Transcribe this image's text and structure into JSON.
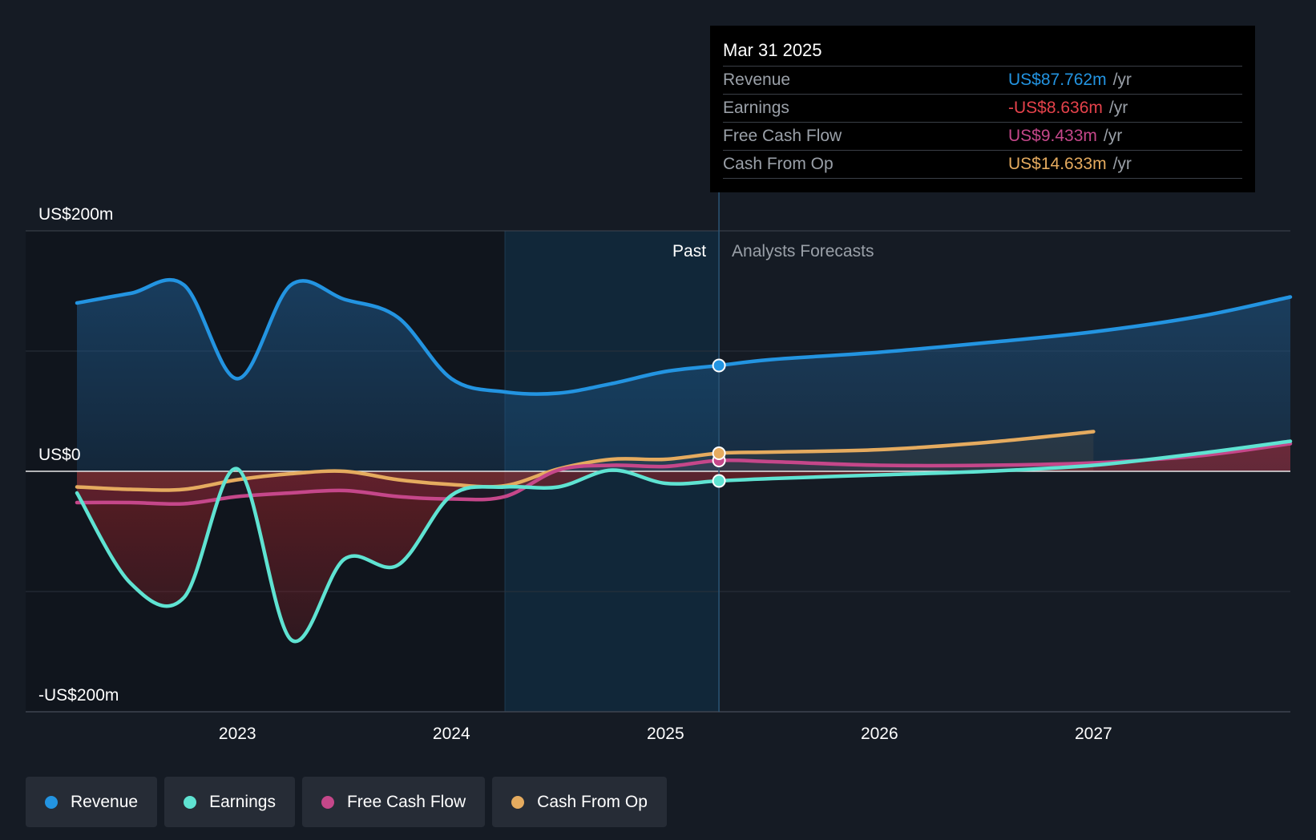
{
  "chart_data": {
    "type": "area",
    "ylim": [
      -200,
      200
    ],
    "xlim": [
      2022.25,
      2027.92
    ],
    "y_axis_labels": [
      {
        "value": 200,
        "label": "US$200m"
      },
      {
        "value": 0,
        "label": "US$0"
      },
      {
        "value": -200,
        "label": "-US$200m"
      }
    ],
    "x_ticks": [
      {
        "value": 2023,
        "label": "2023"
      },
      {
        "value": 2024,
        "label": "2024"
      },
      {
        "value": 2025,
        "label": "2025"
      },
      {
        "value": 2026,
        "label": "2026"
      },
      {
        "value": 2027,
        "label": "2027"
      }
    ],
    "past_label": "Past",
    "forecast_label": "Analysts Forecasts",
    "divider_x": 2025.25,
    "highlight_start_x": 2024.25,
    "series": [
      {
        "name": "Revenue",
        "color": "#2394e1",
        "points": [
          [
            2022.25,
            140
          ],
          [
            2022.5,
            148
          ],
          [
            2022.75,
            155
          ],
          [
            2023.0,
            77
          ],
          [
            2023.25,
            155
          ],
          [
            2023.5,
            143
          ],
          [
            2023.75,
            128
          ],
          [
            2024.0,
            77
          ],
          [
            2024.25,
            66
          ],
          [
            2024.5,
            65
          ],
          [
            2024.75,
            73
          ],
          [
            2025.0,
            83
          ],
          [
            2025.25,
            88
          ],
          [
            2025.5,
            93
          ],
          [
            2026.0,
            99
          ],
          [
            2026.5,
            107
          ],
          [
            2027.0,
            116
          ],
          [
            2027.5,
            129
          ],
          [
            2027.92,
            145
          ]
        ]
      },
      {
        "name": "Earnings",
        "color": "#5fe3d2",
        "points": [
          [
            2022.25,
            -18
          ],
          [
            2022.5,
            -93
          ],
          [
            2022.75,
            -105
          ],
          [
            2023.0,
            2
          ],
          [
            2023.25,
            -140
          ],
          [
            2023.5,
            -73
          ],
          [
            2023.75,
            -78
          ],
          [
            2024.0,
            -20
          ],
          [
            2024.25,
            -13
          ],
          [
            2024.5,
            -13
          ],
          [
            2024.75,
            1
          ],
          [
            2025.0,
            -10
          ],
          [
            2025.25,
            -8
          ],
          [
            2025.5,
            -6
          ],
          [
            2026.0,
            -3
          ],
          [
            2026.5,
            0
          ],
          [
            2027.0,
            5
          ],
          [
            2027.5,
            15
          ],
          [
            2027.92,
            25
          ]
        ]
      },
      {
        "name": "Free Cash Flow",
        "color": "#c5478a",
        "points": [
          [
            2022.25,
            -26
          ],
          [
            2022.5,
            -26
          ],
          [
            2022.75,
            -27
          ],
          [
            2023.0,
            -21
          ],
          [
            2023.25,
            -18
          ],
          [
            2023.5,
            -16
          ],
          [
            2023.75,
            -21
          ],
          [
            2024.0,
            -23
          ],
          [
            2024.25,
            -21
          ],
          [
            2024.5,
            1
          ],
          [
            2024.75,
            5
          ],
          [
            2025.0,
            4
          ],
          [
            2025.25,
            9
          ],
          [
            2025.5,
            8
          ],
          [
            2026.0,
            5
          ],
          [
            2026.5,
            5
          ],
          [
            2027.0,
            7
          ],
          [
            2027.5,
            13
          ],
          [
            2027.92,
            23
          ]
        ]
      },
      {
        "name": "Cash From Op",
        "color": "#e5ab5f",
        "points": [
          [
            2022.25,
            -13
          ],
          [
            2022.5,
            -15
          ],
          [
            2022.75,
            -15
          ],
          [
            2023.0,
            -7
          ],
          [
            2023.25,
            -2
          ],
          [
            2023.5,
            0
          ],
          [
            2023.75,
            -7
          ],
          [
            2024.0,
            -11
          ],
          [
            2024.25,
            -12
          ],
          [
            2024.5,
            2
          ],
          [
            2024.75,
            10
          ],
          [
            2025.0,
            10
          ],
          [
            2025.25,
            15
          ],
          [
            2025.5,
            16
          ],
          [
            2026.0,
            18
          ],
          [
            2026.5,
            24
          ],
          [
            2027.0,
            33
          ]
        ]
      }
    ],
    "tooltip": {
      "date": "Mar 31 2025",
      "unit": "/yr",
      "rows": [
        {
          "label": "Revenue",
          "value": "US$87.762m",
          "color": "#2394e1"
        },
        {
          "label": "Earnings",
          "value": "-US$8.636m",
          "color": "#e5424b"
        },
        {
          "label": "Free Cash Flow",
          "value": "US$9.433m",
          "color": "#c5478a"
        },
        {
          "label": "Cash From Op",
          "value": "US$14.633m",
          "color": "#e5ab5f"
        }
      ]
    }
  },
  "legend": [
    {
      "label": "Revenue",
      "color": "#2394e1"
    },
    {
      "label": "Earnings",
      "color": "#5fe3d2"
    },
    {
      "label": "Free Cash Flow",
      "color": "#c5478a"
    },
    {
      "label": "Cash From Op",
      "color": "#e5ab5f"
    }
  ]
}
